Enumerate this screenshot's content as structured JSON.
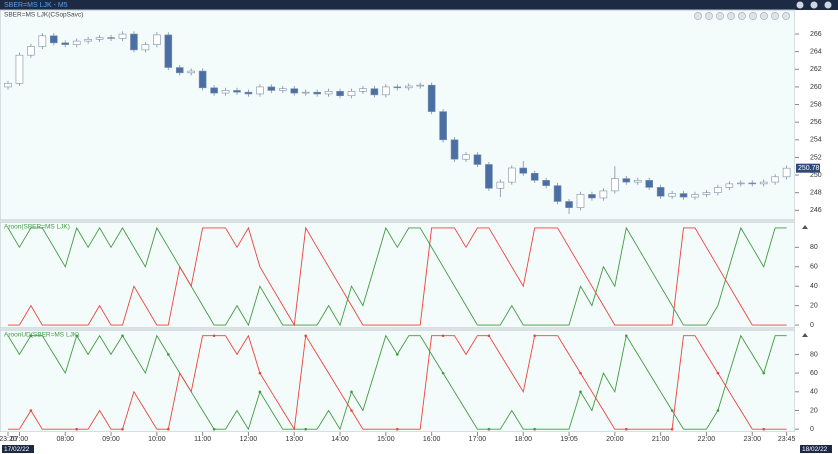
{
  "window_title": "SBER=MS LJK - M5",
  "chart_data": [
    {
      "type": "candlestick",
      "title": "SBER=MS LJK(CSopSavc)",
      "categories": [
        "23:20",
        "07:00",
        null,
        null,
        null,
        "08:00",
        null,
        null,
        null,
        "09:00",
        null,
        null,
        null,
        "10:00",
        null,
        null,
        null,
        "11:00",
        null,
        null,
        null,
        "12:00",
        null,
        null,
        null,
        "13:00",
        null,
        null,
        null,
        "14:00",
        null,
        null,
        null,
        "15:00",
        null,
        null,
        null,
        "16:00",
        null,
        null,
        null,
        "17:00",
        null,
        null,
        null,
        "18:00",
        null,
        null,
        null,
        "19:05",
        null,
        null,
        null,
        "20:00",
        null,
        null,
        null,
        "21:00",
        null,
        null,
        null,
        "22:00",
        null,
        null,
        null,
        "23:00",
        null,
        null,
        "23:45"
      ],
      "open": [
        260.0,
        260.4,
        263.6,
        264.6,
        265.8,
        265.0,
        264.8,
        265.2,
        265.4,
        265.6,
        265.5,
        266.0,
        264.2,
        264.8,
        265.9,
        262.2,
        261.6,
        261.8,
        259.9,
        259.3,
        259.6,
        259.4,
        259.2,
        260.0,
        259.6,
        259.8,
        259.3,
        259.4,
        259.2,
        259.5,
        259.0,
        259.5,
        259.8,
        259.1,
        260.0,
        259.9,
        260.1,
        260.2,
        257.2,
        254.0,
        251.8,
        252.3,
        251.2,
        248.5,
        249.2,
        250.8,
        250.2,
        249.4,
        248.8,
        247.0,
        246.3,
        247.8,
        247.4,
        248.2,
        249.6,
        249.2,
        249.4,
        248.6,
        247.6,
        247.9,
        247.5,
        247.8,
        248.0,
        248.6,
        249.0,
        249.1,
        249.0,
        249.2,
        249.8
      ],
      "high": [
        260.7,
        263.9,
        264.9,
        266.1,
        266.1,
        265.3,
        265.5,
        265.7,
        265.9,
        265.9,
        266.3,
        266.3,
        265.1,
        266.2,
        266.2,
        262.5,
        262.1,
        262.1,
        260.2,
        259.9,
        259.9,
        259.7,
        260.3,
        260.3,
        260.1,
        260.1,
        259.7,
        259.7,
        259.8,
        259.8,
        259.8,
        260.1,
        260.1,
        260.3,
        260.3,
        260.4,
        260.5,
        260.5,
        257.5,
        254.3,
        252.6,
        252.6,
        251.5,
        249.5,
        251.1,
        251.6,
        250.5,
        249.7,
        249.1,
        247.3,
        248.1,
        248.1,
        248.5,
        251.0,
        249.9,
        249.7,
        249.7,
        248.9,
        248.2,
        248.2,
        248.1,
        248.3,
        248.9,
        249.3,
        249.4,
        249.4,
        249.5,
        250.1,
        251.1
      ],
      "low": [
        259.7,
        260.1,
        263.3,
        264.3,
        264.7,
        264.5,
        264.5,
        264.9,
        265.1,
        265.2,
        265.2,
        263.9,
        263.9,
        264.5,
        261.9,
        261.3,
        261.3,
        259.6,
        259.0,
        259.0,
        259.1,
        258.9,
        258.9,
        259.3,
        259.3,
        259.0,
        259.0,
        258.9,
        258.9,
        258.7,
        258.7,
        259.2,
        258.8,
        258.8,
        259.6,
        259.6,
        259.8,
        256.9,
        253.7,
        251.5,
        251.5,
        250.9,
        248.2,
        247.5,
        248.9,
        249.9,
        249.1,
        248.5,
        246.7,
        245.6,
        246.0,
        247.1,
        247.1,
        247.9,
        248.9,
        248.9,
        248.3,
        247.3,
        247.3,
        247.2,
        247.2,
        247.5,
        247.7,
        248.3,
        248.7,
        248.7,
        248.7,
        248.9,
        249.5
      ],
      "close": [
        260.4,
        263.6,
        264.6,
        265.8,
        265.0,
        264.8,
        265.2,
        265.4,
        265.6,
        265.5,
        266.0,
        264.2,
        264.8,
        265.9,
        262.2,
        261.6,
        261.8,
        259.9,
        259.3,
        259.6,
        259.4,
        259.2,
        260.0,
        259.6,
        259.8,
        259.3,
        259.4,
        259.2,
        259.5,
        259.0,
        259.5,
        259.8,
        259.1,
        260.0,
        259.9,
        260.1,
        260.2,
        257.2,
        254.0,
        251.8,
        252.3,
        251.2,
        248.5,
        249.2,
        250.8,
        250.2,
        249.4,
        248.8,
        247.0,
        246.3,
        247.8,
        247.4,
        248.2,
        249.6,
        249.2,
        249.4,
        248.6,
        247.6,
        247.9,
        247.5,
        247.8,
        248.0,
        248.6,
        249.0,
        249.1,
        249.0,
        249.2,
        249.8,
        250.78
      ],
      "up_color": "#ffffff",
      "down_color": "#4a6fa5",
      "outline_color": "#7d8fa8",
      "last_price": 250.78,
      "ylim": [
        244.9,
        268.5
      ],
      "yticks": [
        246,
        248,
        250,
        252,
        254,
        256,
        258,
        260,
        262,
        264,
        266
      ],
      "date_labels": [
        "17/02/22",
        "18/02/22"
      ]
    },
    {
      "type": "line",
      "title": "Aroon(SBER=MS LJK)",
      "markers": false,
      "series": [
        {
          "color": "#3f9b3f",
          "values": [
            100,
            80,
            100,
            100,
            80,
            60,
            100,
            80,
            100,
            80,
            100,
            80,
            60,
            100,
            80,
            60,
            40,
            20,
            0,
            0,
            20,
            0,
            40,
            20,
            0,
            0,
            0,
            0,
            20,
            0,
            40,
            20,
            60,
            100,
            80,
            100,
            100,
            80,
            60,
            40,
            20,
            0,
            0,
            0,
            20,
            0,
            0,
            0,
            0,
            0,
            40,
            20,
            60,
            40,
            100,
            80,
            60,
            40,
            20,
            0,
            0,
            0,
            20,
            60,
            100,
            80,
            60,
            100,
            100
          ]
        },
        {
          "color": "#e8453c",
          "values": [
            0,
            0,
            20,
            0,
            0,
            0,
            0,
            0,
            20,
            0,
            0,
            40,
            20,
            0,
            0,
            60,
            40,
            100,
            100,
            100,
            80,
            100,
            60,
            40,
            20,
            0,
            100,
            80,
            60,
            40,
            20,
            0,
            0,
            0,
            0,
            0,
            0,
            100,
            100,
            100,
            80,
            100,
            100,
            80,
            60,
            40,
            100,
            100,
            100,
            80,
            60,
            40,
            20,
            0,
            0,
            0,
            0,
            0,
            0,
            100,
            100,
            80,
            60,
            40,
            20,
            0,
            0,
            0,
            0
          ]
        }
      ],
      "ylim": [
        -3,
        104
      ],
      "yticks": [
        0,
        20,
        40,
        60,
        80
      ]
    },
    {
      "type": "line",
      "title": "AroonUD(SBER=MS LJK)",
      "markers": true,
      "series": [
        {
          "color": "#3f9b3f",
          "values": [
            100,
            80,
            100,
            100,
            80,
            60,
            100,
            80,
            100,
            80,
            100,
            80,
            60,
            100,
            80,
            60,
            40,
            20,
            0,
            0,
            20,
            0,
            40,
            20,
            0,
            0,
            0,
            0,
            20,
            0,
            40,
            20,
            60,
            100,
            80,
            100,
            100,
            80,
            60,
            40,
            20,
            0,
            0,
            0,
            20,
            0,
            0,
            0,
            0,
            0,
            40,
            20,
            60,
            40,
            100,
            80,
            60,
            40,
            20,
            0,
            0,
            0,
            20,
            60,
            100,
            80,
            60,
            100,
            100
          ]
        },
        {
          "color": "#e8453c",
          "values": [
            0,
            0,
            20,
            0,
            0,
            0,
            0,
            0,
            20,
            0,
            0,
            40,
            20,
            0,
            0,
            60,
            40,
            100,
            100,
            100,
            80,
            100,
            60,
            40,
            20,
            0,
            100,
            80,
            60,
            40,
            20,
            0,
            0,
            0,
            0,
            0,
            0,
            100,
            100,
            100,
            80,
            100,
            100,
            80,
            60,
            40,
            100,
            100,
            100,
            80,
            60,
            40,
            20,
            0,
            0,
            0,
            0,
            0,
            0,
            100,
            100,
            80,
            60,
            40,
            20,
            0,
            0,
            0,
            0
          ]
        }
      ],
      "ylim": [
        -3,
        104
      ],
      "yticks": [
        0,
        20,
        40,
        60,
        80
      ]
    }
  ]
}
